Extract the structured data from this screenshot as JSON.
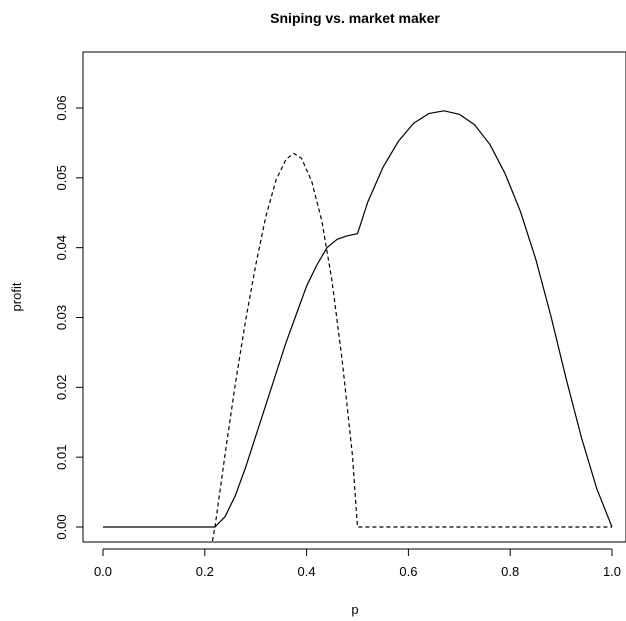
{
  "chart_data": {
    "type": "line",
    "title": "Sniping vs. market maker",
    "xlabel": "p",
    "ylabel": "profit",
    "xlim": [
      0.0,
      1.0
    ],
    "ylim": [
      0.0,
      0.06
    ],
    "x_ticks": [
      "0.0",
      "0.2",
      "0.4",
      "0.6",
      "0.8",
      "1.0"
    ],
    "y_ticks": [
      "0.00",
      "0.01",
      "0.02",
      "0.03",
      "0.04",
      "0.05",
      "0.06"
    ],
    "grid": false,
    "legend": "none",
    "series": [
      {
        "style": "solid",
        "color": "#000000",
        "points": [
          [
            0.0,
            0.0
          ],
          [
            0.1,
            0.0
          ],
          [
            0.2,
            0.0
          ],
          [
            0.22,
            0.0
          ],
          [
            0.24,
            0.0015
          ],
          [
            0.26,
            0.0045
          ],
          [
            0.28,
            0.0085
          ],
          [
            0.3,
            0.013
          ],
          [
            0.32,
            0.0175
          ],
          [
            0.34,
            0.022
          ],
          [
            0.36,
            0.0265
          ],
          [
            0.38,
            0.0305
          ],
          [
            0.4,
            0.0345
          ],
          [
            0.42,
            0.0375
          ],
          [
            0.44,
            0.04
          ],
          [
            0.46,
            0.0412
          ],
          [
            0.48,
            0.0417
          ],
          [
            0.5,
            0.042
          ],
          [
            0.52,
            0.0465
          ],
          [
            0.55,
            0.0515
          ],
          [
            0.58,
            0.0552
          ],
          [
            0.61,
            0.0578
          ],
          [
            0.64,
            0.0592
          ],
          [
            0.67,
            0.0596
          ],
          [
            0.7,
            0.0591
          ],
          [
            0.73,
            0.0576
          ],
          [
            0.76,
            0.0548
          ],
          [
            0.79,
            0.0506
          ],
          [
            0.82,
            0.0452
          ],
          [
            0.85,
            0.0384
          ],
          [
            0.88,
            0.0302
          ],
          [
            0.91,
            0.0212
          ],
          [
            0.94,
            0.0128
          ],
          [
            0.97,
            0.0055
          ],
          [
            1.0,
            0.0
          ]
        ]
      },
      {
        "style": "dashed",
        "color": "#000000",
        "points": [
          [
            0.215,
            -0.002
          ],
          [
            0.22,
            0.0
          ],
          [
            0.24,
            0.0105
          ],
          [
            0.26,
            0.0205
          ],
          [
            0.28,
            0.0295
          ],
          [
            0.3,
            0.0375
          ],
          [
            0.32,
            0.0445
          ],
          [
            0.34,
            0.0497
          ],
          [
            0.36,
            0.0527
          ],
          [
            0.375,
            0.0535
          ],
          [
            0.39,
            0.0528
          ],
          [
            0.41,
            0.0495
          ],
          [
            0.43,
            0.0438
          ],
          [
            0.45,
            0.0352
          ],
          [
            0.47,
            0.0238
          ],
          [
            0.49,
            0.0103
          ],
          [
            0.5,
            0.0
          ],
          [
            0.6,
            0.0
          ],
          [
            0.8,
            0.0
          ],
          [
            1.0,
            0.0
          ]
        ]
      }
    ]
  }
}
